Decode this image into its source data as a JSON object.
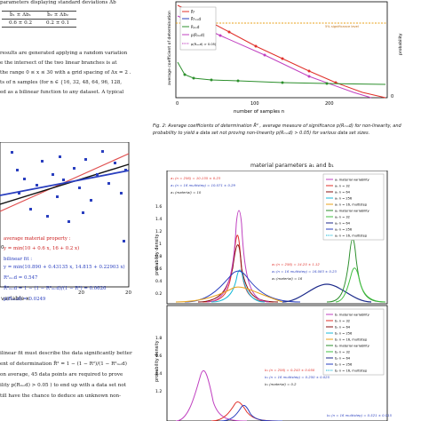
{
  "left_column": {
    "header_line": "parameters displaying standard deviations  Δb",
    "table": {
      "headers": [
        "b̄₁ ± Δb₁",
        "b̄₂ ± Δb₂"
      ],
      "values": [
        "0.6 ± 0.2",
        "0.2 ± 0.1"
      ]
    },
    "para1": [
      "results are generated applying a random variation",
      "e the intersect of the two linear branches is at",
      "the range 0 ≤ x ≤ 30 with a grid spacing of Δx = 2 .",
      "",
      "ts of  n  samples (for  n ∈ {16, 32, 48, 64, 96, 128,",
      "ed as a bilinear function to any dataset. A typical"
    ],
    "scatter_panel": {
      "y_tick": "0",
      "x_ticks": [
        "20",
        "20"
      ],
      "x_axis_label": "variable  x",
      "material_property_title": "average material property :",
      "material_property_eq": "y = min(10 + 0.6 x, 16 + 0.2 x)",
      "bilinear_title": "bilinear fit :",
      "bilinear_eq": "y = min(10.890 + 0.43135 x, 14.815 + 0.22903 x)",
      "r2_eq": "R²ₘₒd = 0.547",
      "adj_eq": "R̄²ₘₒd = 1 − (1 − R²ₘₒd)/(1 − R²) = 0.0626",
      "p_eq": "p(Rₘₒd) = 0.0249"
    },
    "para2": [
      "ilinear fit must describe the data significantly better",
      "ent of determination  R̄² = 1 − (1 − R²)/(1 − R²ₘₒd)",
      "on average, 45 data points are required to prove",
      "ility  p(Rₘₒd) > 0.05 )  to end up with a data set not",
      "till have the chance to deduce an unknown non-"
    ]
  },
  "fig2": {
    "y_label_left": "average coefficient of determination",
    "y_label_right": "probability",
    "x_label": "number of samples  n",
    "x_ticks": [
      "0",
      "100",
      "200"
    ],
    "right_tick": "0",
    "threshold_label": "5% significance level",
    "legend": [
      "R̄²",
      "R̄²ₘₒd",
      "Rₘₒd",
      "p(Rₘₒd)",
      "p(Rₘₒd) > 0.05)"
    ],
    "caption": [
      "Fig. 2: Average coefficients of determination  R̄² , average measure of significance  p(Rₘₒd)  for non-linearity, and",
      "probability to yield a data set not proving non-linearity  p(Rₘₒd) > 0.05)  for various data set sizes."
    ]
  },
  "fig3": {
    "title": "material parameters  a₁ and b₁",
    "y_label_top": "probability density",
    "y_label_bottom": "probability density",
    "top_y_ticks": [
      "1.6",
      "1.4",
      "1.2",
      "1",
      "0.8",
      "0.6",
      "0.4",
      "0.2"
    ],
    "bottom_y_ticks": [
      "1.8",
      "1.6",
      "1.4",
      "1.2"
    ],
    "top_annotations": [
      "a₁ (n = 256)      = 10.135 ± 0.23",
      "a₁ (n = 16 multistep) = 10.071 ± 0.29",
      "a₁ (material)      = 10"
    ],
    "top_mid_annotations": [
      "a₂ (n = 256)      = 14.25 ± 1.12",
      "a₂ (n = 16 multistep) = 16.083 ± 0.23",
      "a₂ (material)      = 16"
    ],
    "bottom_annotations": [
      "b₁ (n = 256)      = 0.243 ± 0.050",
      "b₁ (n = 16 multistep) = 0.250 ± 0.025",
      "b₁ (material)      = 0.2"
    ],
    "bottom_lower_annotation": "b₂ (n = 16 multistep) = 0.521 ± 0.015",
    "legend_top": [
      "a₁  material variability",
      "a₁  n = 32",
      "a₁  n = 64",
      "a₁  n = 256",
      "a₁  n = 16, multistep",
      "a₂  material variability",
      "a₂  n = 32",
      "a₂  n = 64",
      "a₂  n = 256",
      "a₂  n = 16, multistep"
    ],
    "legend_bottom": [
      "b₁  material variability",
      "b₁  n = 32",
      "b₁  n = 64",
      "b₁  n = 256",
      "b₁  n = 16, multistep",
      "b₂  material variability",
      "b₂  n = 32",
      "b₂  n = 64",
      "b₂  n = 256",
      "b₂  n = 16, multistep"
    ]
  },
  "colors": {
    "red": "#e0302a",
    "blue": "#2a3fbf",
    "magenta": "#c040c0",
    "green": "#2c8f2c",
    "orange": "#e8a21a",
    "cyan": "#18b8d8",
    "navy": "#1c2a8a",
    "darkred": "#8a1010",
    "lime": "#40c040"
  }
}
